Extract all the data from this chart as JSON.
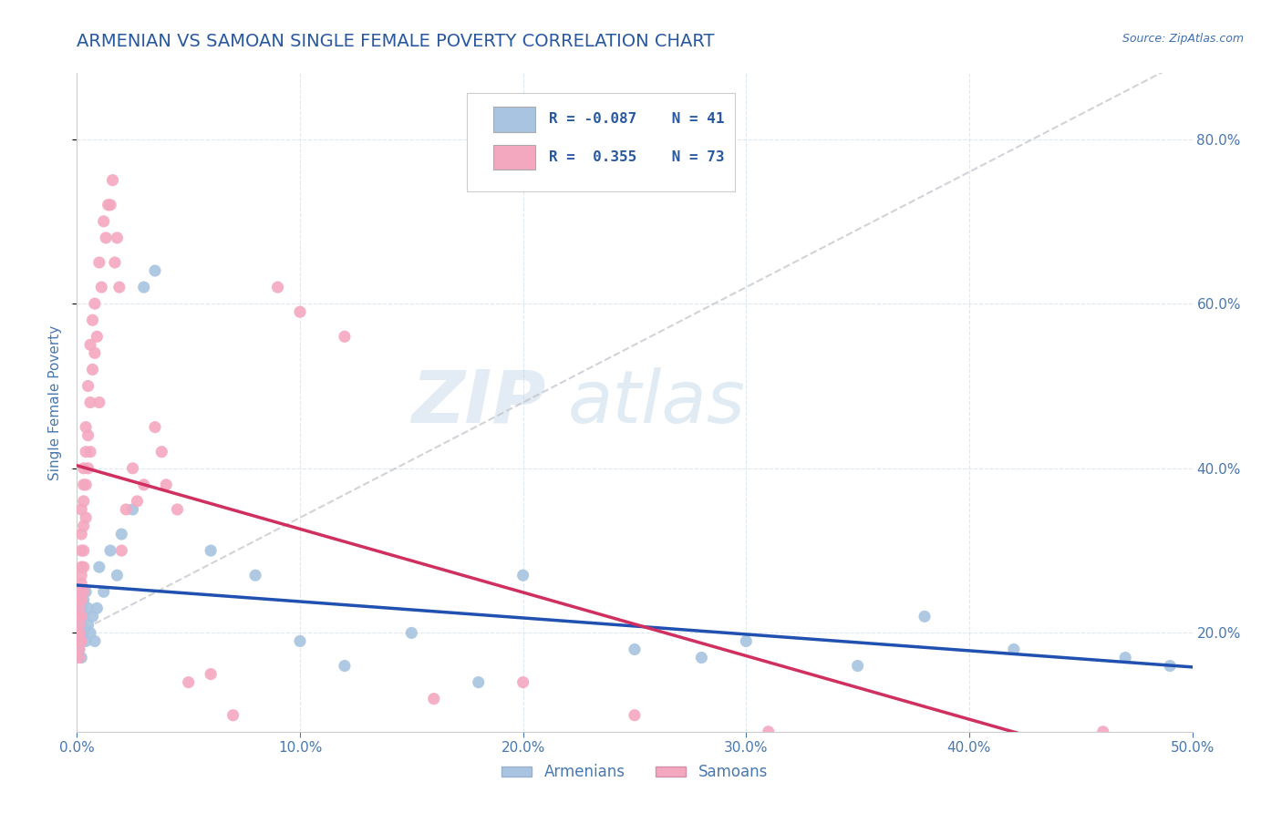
{
  "title": "ARMENIAN VS SAMOAN SINGLE FEMALE POVERTY CORRELATION CHART",
  "source": "Source: ZipAtlas.com",
  "ylabel": "Single Female Poverty",
  "legend_label_armenians": "Armenians",
  "legend_label_samoans": "Samoans",
  "R_armenian": -0.087,
  "N_armenian": 41,
  "R_samoan": 0.355,
  "N_samoan": 73,
  "armenian_color": "#a8c4e0",
  "samoan_color": "#f4a8c0",
  "armenian_line_color": "#2050b0",
  "samoan_line_color": "#d03060",
  "diag_line_color": "#c0c0c8",
  "title_color": "#2858a0",
  "source_color": "#4070b0",
  "axis_color": "#4878b0",
  "background_color": "#ffffff",
  "grid_color": "#dde8f0",
  "xlim": [
    0.0,
    0.5
  ],
  "ylim": [
    0.08,
    0.88
  ],
  "right_yticks": [
    0.2,
    0.4,
    0.6,
    0.8
  ],
  "right_yticklabels": [
    "20.0%",
    "40.0%",
    "60.0%",
    "80.0%"
  ],
  "xtick_vals": [
    0.0,
    0.1,
    0.2,
    0.3,
    0.4,
    0.5
  ],
  "xtick_labels": [
    "0.0%",
    "10.0%",
    "20.0%",
    "30.0%",
    "40.0%",
    "50.0%"
  ],
  "watermark": "ZIPatlas",
  "armenian_x": [
    0.001,
    0.001,
    0.001,
    0.002,
    0.002,
    0.002,
    0.002,
    0.003,
    0.003,
    0.003,
    0.004,
    0.004,
    0.005,
    0.005,
    0.006,
    0.007,
    0.008,
    0.009,
    0.01,
    0.012,
    0.015,
    0.018,
    0.02,
    0.025,
    0.03,
    0.035,
    0.06,
    0.08,
    0.1,
    0.12,
    0.15,
    0.18,
    0.2,
    0.25,
    0.28,
    0.3,
    0.35,
    0.38,
    0.42,
    0.47,
    0.49
  ],
  "armenian_y": [
    0.2,
    0.22,
    0.18,
    0.19,
    0.23,
    0.21,
    0.17,
    0.24,
    0.2,
    0.22,
    0.25,
    0.19,
    0.21,
    0.23,
    0.2,
    0.22,
    0.19,
    0.23,
    0.28,
    0.25,
    0.3,
    0.27,
    0.32,
    0.35,
    0.62,
    0.64,
    0.3,
    0.27,
    0.19,
    0.16,
    0.2,
    0.14,
    0.27,
    0.18,
    0.17,
    0.19,
    0.16,
    0.22,
    0.18,
    0.17,
    0.16
  ],
  "samoan_x": [
    0.001,
    0.001,
    0.001,
    0.001,
    0.001,
    0.001,
    0.001,
    0.001,
    0.001,
    0.001,
    0.001,
    0.002,
    0.002,
    0.002,
    0.002,
    0.002,
    0.002,
    0.002,
    0.002,
    0.002,
    0.003,
    0.003,
    0.003,
    0.003,
    0.003,
    0.003,
    0.003,
    0.004,
    0.004,
    0.004,
    0.004,
    0.005,
    0.005,
    0.005,
    0.006,
    0.006,
    0.006,
    0.007,
    0.007,
    0.008,
    0.008,
    0.009,
    0.01,
    0.01,
    0.011,
    0.012,
    0.013,
    0.014,
    0.015,
    0.016,
    0.017,
    0.018,
    0.019,
    0.02,
    0.022,
    0.025,
    0.027,
    0.03,
    0.035,
    0.038,
    0.04,
    0.045,
    0.05,
    0.06,
    0.07,
    0.09,
    0.1,
    0.12,
    0.16,
    0.2,
    0.25,
    0.31,
    0.46
  ],
  "samoan_y": [
    0.2,
    0.22,
    0.19,
    0.24,
    0.18,
    0.21,
    0.25,
    0.17,
    0.23,
    0.2,
    0.22,
    0.28,
    0.19,
    0.26,
    0.3,
    0.24,
    0.32,
    0.22,
    0.27,
    0.35,
    0.3,
    0.38,
    0.25,
    0.33,
    0.4,
    0.28,
    0.36,
    0.45,
    0.42,
    0.38,
    0.34,
    0.5,
    0.44,
    0.4,
    0.55,
    0.48,
    0.42,
    0.58,
    0.52,
    0.6,
    0.54,
    0.56,
    0.65,
    0.48,
    0.62,
    0.7,
    0.68,
    0.72,
    0.72,
    0.75,
    0.65,
    0.68,
    0.62,
    0.3,
    0.35,
    0.4,
    0.36,
    0.38,
    0.45,
    0.42,
    0.38,
    0.35,
    0.14,
    0.15,
    0.1,
    0.62,
    0.59,
    0.56,
    0.12,
    0.14,
    0.1,
    0.08,
    0.08
  ]
}
